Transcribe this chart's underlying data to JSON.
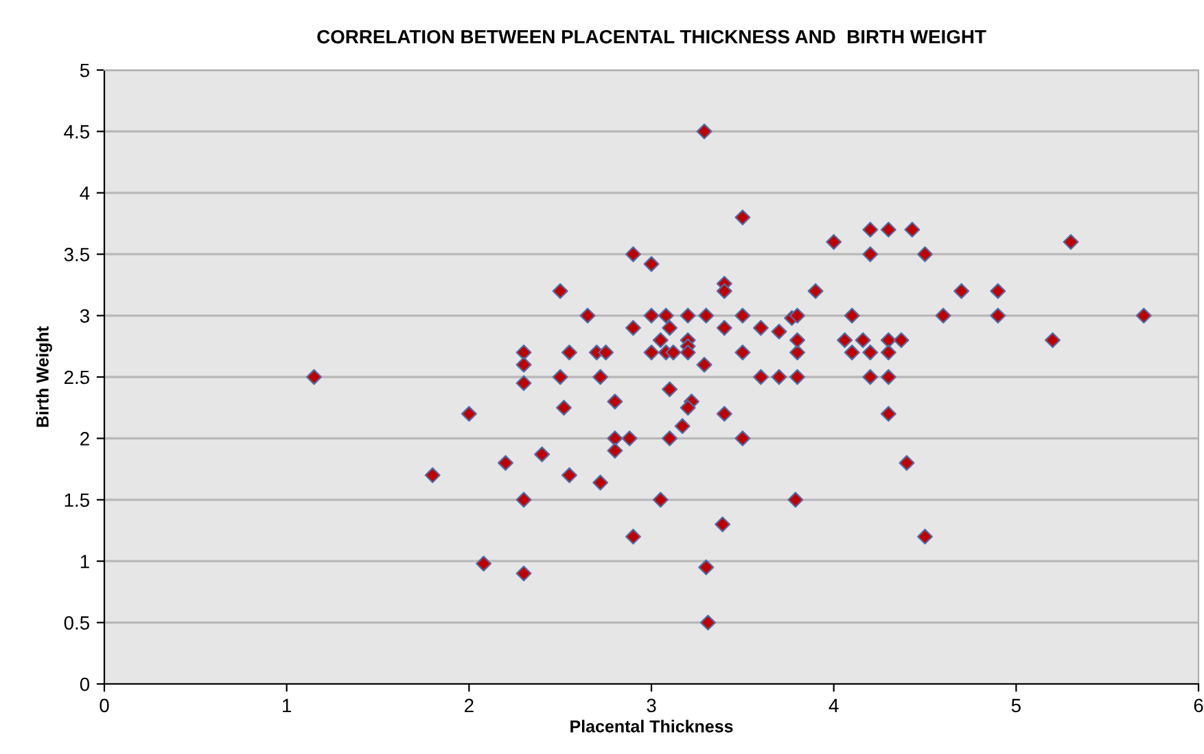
{
  "chart_data": {
    "type": "scatter",
    "title": "CORRELATION BETWEEN PLACENTAL THICKNESS AND  BIRTH WEIGHT",
    "xlabel": "Placental Thickness",
    "ylabel": "Birth Weight",
    "x": [
      1.15,
      1.8,
      2.0,
      2.08,
      2.2,
      2.3,
      2.3,
      2.3,
      2.3,
      2.3,
      2.4,
      2.5,
      2.5,
      2.52,
      2.55,
      2.55,
      2.65,
      2.7,
      2.72,
      2.72,
      2.75,
      2.8,
      2.8,
      2.8,
      2.88,
      2.9,
      2.9,
      2.9,
      3.0,
      3.0,
      3.0,
      3.05,
      3.05,
      3.08,
      3.1,
      3.08,
      3.1,
      3.1,
      3.12,
      3.17,
      3.2,
      3.2,
      3.2,
      3.2,
      3.22,
      3.2,
      3.29,
      3.3,
      3.29,
      3.3,
      3.31,
      3.4,
      3.4,
      3.4,
      3.4,
      3.39,
      3.5,
      3.5,
      3.5,
      3.5,
      3.6,
      3.6,
      3.7,
      3.7,
      3.77,
      3.8,
      3.8,
      3.8,
      3.8,
      3.79,
      3.9,
      4.0,
      4.2,
      4.3,
      4.43,
      4.2,
      4.5,
      5.3,
      4.7,
      4.9,
      4.1,
      4.6,
      4.9,
      5.7,
      4.06,
      4.16,
      4.3,
      4.37,
      5.2,
      4.1,
      4.2,
      4.3,
      4.2,
      4.3,
      4.3,
      4.4,
      4.5
    ],
    "values": [
      2.5,
      1.7,
      2.2,
      0.98,
      1.8,
      2.7,
      2.6,
      2.45,
      1.5,
      0.9,
      1.87,
      3.2,
      2.5,
      2.25,
      2.7,
      1.7,
      3.0,
      2.7,
      2.5,
      1.64,
      2.7,
      2.3,
      2.0,
      1.9,
      2.0,
      3.5,
      2.9,
      1.2,
      3.42,
      3.0,
      2.7,
      2.8,
      1.5,
      3.0,
      2.9,
      2.7,
      2.4,
      2.0,
      2.7,
      2.1,
      2.8,
      3.0,
      2.75,
      2.7,
      2.3,
      2.25,
      4.5,
      3.0,
      2.6,
      0.95,
      0.5,
      3.26,
      3.2,
      2.9,
      2.2,
      1.3,
      3.8,
      3.0,
      2.7,
      2.0,
      2.9,
      2.5,
      2.87,
      2.5,
      2.98,
      2.7,
      2.8,
      2.5,
      3.0,
      1.5,
      3.2,
      3.6,
      3.7,
      3.7,
      3.7,
      3.5,
      3.5,
      3.6,
      3.2,
      3.2,
      3.0,
      3.0,
      3.0,
      3.0,
      2.8,
      2.8,
      2.8,
      2.8,
      2.8,
      2.7,
      2.7,
      2.7,
      2.5,
      2.5,
      2.2,
      1.8,
      1.2
    ],
    "color": "#c00000",
    "marker": "diamond",
    "xlim": [
      0,
      6
    ],
    "ylim": [
      0,
      5
    ],
    "xticks": [
      0,
      1,
      2,
      3,
      4,
      5,
      6
    ],
    "yticks": [
      0,
      0.5,
      1,
      1.5,
      2,
      2.5,
      3,
      3.5,
      4,
      4.5,
      5
    ],
    "grid": "y"
  }
}
